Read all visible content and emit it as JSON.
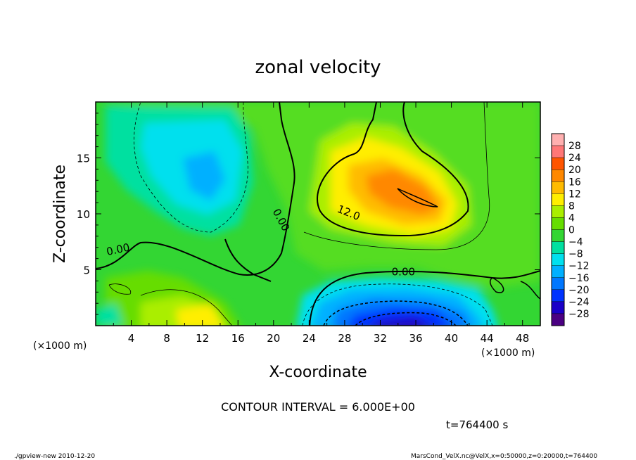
{
  "chart_data": {
    "type": "heatmap",
    "title": "zonal velocity",
    "xlabel": "X-coordinate",
    "ylabel": "Z-coordinate",
    "x_unit_left": "(×1000 m)",
    "x_unit_right": "(×1000 m)",
    "xlim": [
      0,
      50
    ],
    "ylim": [
      0,
      20
    ],
    "x_ticks": [
      4,
      8,
      12,
      16,
      20,
      24,
      28,
      32,
      36,
      40,
      44,
      48
    ],
    "y_ticks": [
      5,
      10,
      15
    ],
    "colorbar": {
      "levels": [
        -28,
        -24,
        -20,
        -16,
        -12,
        -8,
        -4,
        0,
        4,
        8,
        12,
        16,
        20,
        24,
        28
      ],
      "labels": [
        "28",
        "24",
        "20",
        "16",
        "12",
        "8",
        "4",
        "0",
        "−4",
        "−8",
        "−12",
        "−16",
        "−20",
        "−24",
        "−28"
      ],
      "colors": [
        "#4b0082",
        "#1a00c8",
        "#0033ff",
        "#0077ff",
        "#00b0ff",
        "#00e0ee",
        "#00e0a0",
        "#33d633",
        "#66dd00",
        "#aaee00",
        "#ffee00",
        "#ffbb00",
        "#ff8800",
        "#ff5500",
        "#ff7777",
        "#ffb0b0"
      ]
    },
    "contour_labels": [
      {
        "text": "0.00",
        "x": 2.6,
        "z": 6.5,
        "rotate": -12
      },
      {
        "text": "0.00",
        "x": 20.5,
        "z": 9.3,
        "rotate": 62
      },
      {
        "text": "12.0",
        "x": 28.3,
        "z": 9.8,
        "rotate": 22
      },
      {
        "text": "0.00",
        "x": 34.6,
        "z": 4.5,
        "rotate": 0
      }
    ],
    "contour_interval": "CONTOUR INTERVAL = 6.000E+00",
    "time": "t=764400 s"
  },
  "footer": {
    "left": "./gpview-new   2010-12-20",
    "right": "MarsCond_VelX.nc@VelX,x=0:50000,z=0:20000,t=764400"
  }
}
